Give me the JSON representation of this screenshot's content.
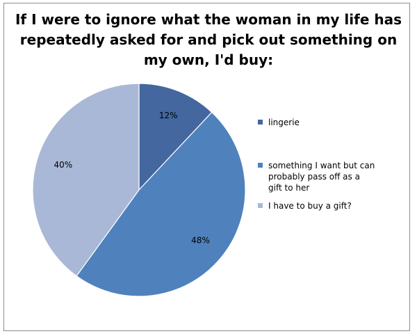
{
  "chart_data": {
    "type": "pie",
    "title": "If I were to ignore what the woman in my life has repeatedly asked for and pick out something on my own, I'd buy:",
    "categories": [
      "lingerie",
      "something I want but can probably pass off as a gift to her",
      "I have to buy a gift?"
    ],
    "values": [
      12,
      48,
      40
    ],
    "data_labels": [
      "12%",
      "48%",
      "40%"
    ],
    "colors": [
      "#43679e",
      "#4f81bd",
      "#a9b8d6"
    ],
    "legend_position": "right"
  }
}
